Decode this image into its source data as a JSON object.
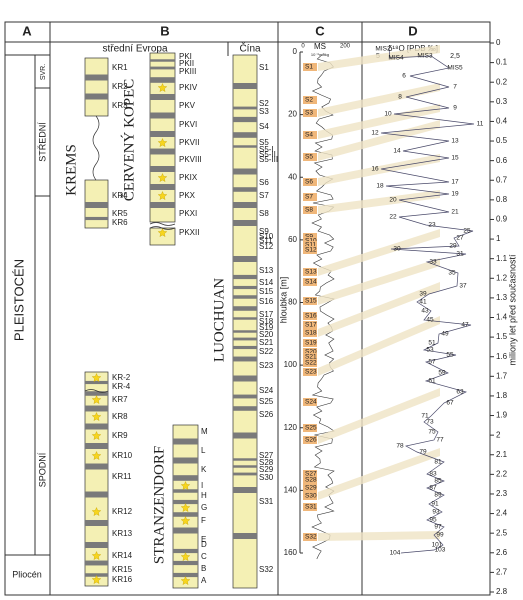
{
  "columns": {
    "a": "A",
    "b": "B",
    "c": "C",
    "d": "D"
  },
  "column_b": {
    "europe": "střední Evropa",
    "china": "Čína"
  },
  "stratigraphy": {
    "period": "PLEISTOCÉN",
    "upper": "SVR.",
    "middle": "STŘEDNÍ",
    "lower": "SPODNÍ",
    "pliocene": "Pliocén"
  },
  "krems": {
    "name": "KREMS",
    "units": [
      "KR1",
      "KR2",
      "KR3",
      "KR4",
      "KR5",
      "KR6",
      "KR-2",
      "KR-4",
      "KR7",
      "KR8",
      "KR9",
      "KR10",
      "KR11",
      "KR12",
      "KR13",
      "KR14",
      "KR15",
      "KR16"
    ]
  },
  "cerveny_kopec": {
    "name": "ČERVENÝ KOPEC",
    "units": [
      "PKI",
      "PKII",
      "PKIII",
      "PKIV",
      "PKV",
      "PKVI",
      "PKVII",
      "PKVIII",
      "PKIX",
      "PKX",
      "PKXI",
      "PKXII"
    ]
  },
  "stranzendorf": {
    "name": "STRANZENDORF",
    "units": [
      "M",
      "L",
      "K",
      "I",
      "H",
      "G",
      "F",
      "E",
      "D",
      "C",
      "B",
      "A"
    ]
  },
  "luochuan": {
    "name": "LUOCHUAN",
    "units": [
      "S1",
      "S2",
      "S3",
      "S4",
      "S5",
      "S5-I",
      "S5-II",
      "S5-III",
      "S6",
      "S7",
      "S8",
      "S9",
      "S10",
      "S11",
      "S12",
      "S13",
      "S14",
      "S15",
      "S16",
      "S17",
      "S18",
      "S19",
      "S20",
      "S21",
      "S22",
      "S23",
      "S24",
      "S25",
      "S26",
      "S27",
      "S28",
      "S29",
      "S30",
      "S31",
      "S32"
    ]
  },
  "ms": {
    "label": "MS",
    "unit": "10⁻⁸m³/kg",
    "ticks": [
      0,
      200
    ],
    "depth_label": "hloubka [m]",
    "depth_ticks": [
      0,
      20,
      40,
      60,
      80,
      100,
      120,
      140,
      160
    ],
    "units": [
      "S1",
      "S2",
      "S3",
      "S4",
      "S5",
      "S6",
      "S7",
      "S8",
      "S9",
      "S10",
      "S11",
      "S12",
      "S13",
      "S14",
      "S15",
      "S16",
      "S17",
      "S18",
      "S19",
      "S20",
      "S21",
      "S22",
      "S23",
      "S24",
      "S25",
      "S26",
      "S27",
      "S28",
      "S29",
      "S30",
      "S31",
      "S32"
    ]
  },
  "oxygen": {
    "label": "δ¹⁸O [PDB ‰]",
    "ticks": [
      5,
      {
        "value": 2.5,
        "label": "2,5"
      }
    ],
    "age_label": "miliony let před současností",
    "age_ticks": [
      0,
      0.1,
      0.2,
      0.3,
      0.4,
      0.5,
      0.6,
      0.7,
      0.8,
      0.9,
      1,
      1.1,
      1.2,
      1.3,
      1.4,
      1.5,
      1.6,
      1.7,
      1.8,
      1.9,
      2,
      2.1,
      2.2,
      2.3,
      2.4,
      2.5,
      2.6,
      2.7,
      2.8
    ],
    "stages": [
      "MIS2",
      "MIS4",
      "MIS3",
      "MIS5",
      "6",
      "7",
      "8",
      "9",
      "10",
      "11",
      "12",
      "13",
      "14",
      "15",
      "16",
      "17",
      "18",
      "19",
      "20",
      "21",
      "22",
      "23",
      "25",
      "27",
      "29",
      "30",
      "31",
      "33",
      "35",
      "37",
      "39",
      "41",
      "43",
      "45",
      "47",
      "49",
      "51",
      "53",
      "55",
      "57",
      "59",
      "61",
      "63",
      "67",
      "71",
      "73",
      "75",
      "77",
      "78",
      "79",
      "81",
      "83",
      "85",
      "87",
      "89",
      "91",
      "93",
      "95",
      "97",
      "99",
      "101",
      "103",
      "104"
    ]
  }
}
